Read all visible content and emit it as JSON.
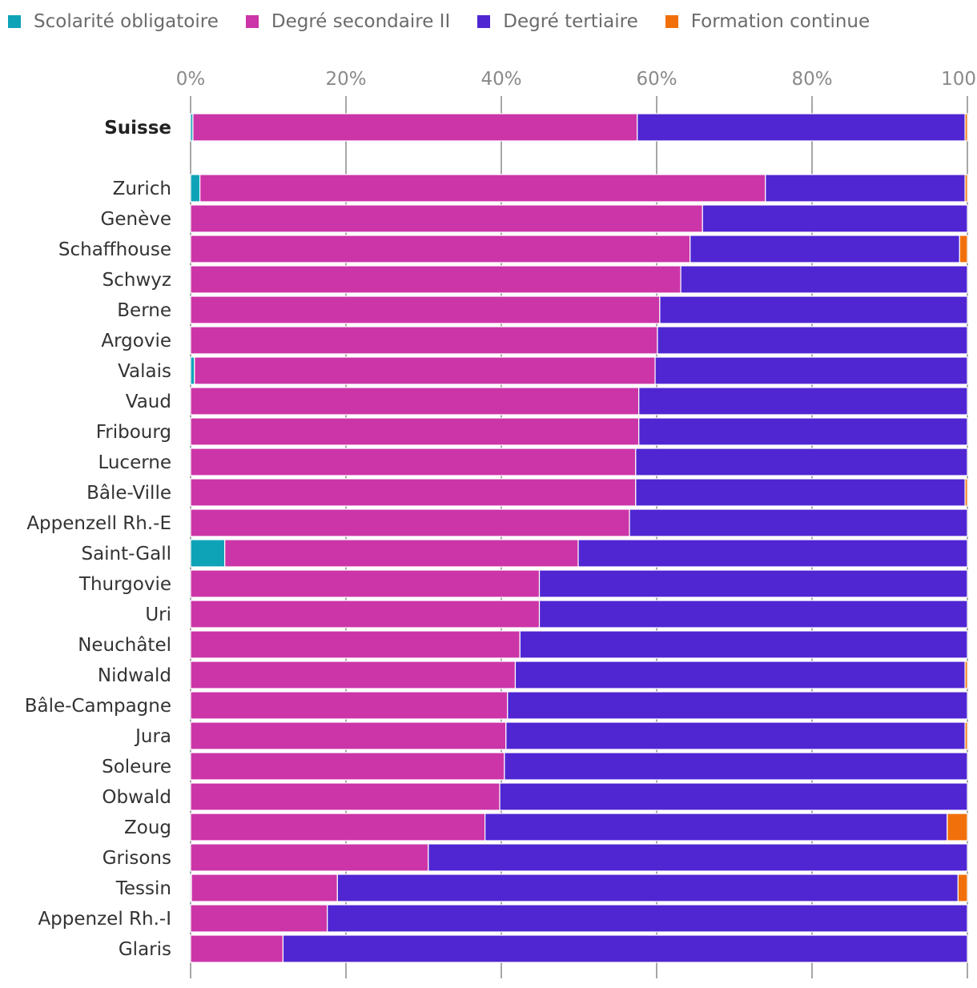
{
  "chart_data": {
    "type": "bar",
    "orientation": "horizontal",
    "stacked": true,
    "title": "",
    "xlabel": "",
    "ylabel": "",
    "xlim": [
      0,
      100
    ],
    "x_ticks": [
      "0%",
      "20%",
      "40%",
      "60%",
      "80%",
      "100%"
    ],
    "x_tick_values": [
      0,
      20,
      40,
      60,
      80,
      100
    ],
    "legend_position": "top-left",
    "grid": "vertical",
    "highlighted_category": "Suisse",
    "categories": [
      "Suisse",
      "Zurich",
      "Genève",
      "Schaffhouse",
      "Schwyz",
      "Berne",
      "Argovie",
      "Valais",
      "Vaud",
      "Fribourg",
      "Lucerne",
      "Bâle-Ville",
      "Appenzell Rh.-E",
      "Saint-Gall",
      "Thurgovie",
      "Uri",
      "Neuchâtel",
      "Nidwald",
      "Bâle-Campagne",
      "Jura",
      "Soleure",
      "Obwald",
      "Zoug",
      "Grisons",
      "Tessin",
      "Appenzel Rh.-I",
      "Glaris"
    ],
    "series": [
      {
        "name": "Scolarité obligatoire",
        "color": "#0fa3b8",
        "values": [
          0.3,
          1.2,
          0,
          0,
          0,
          0,
          0,
          0.5,
          0,
          0,
          0,
          0,
          0,
          4.4,
          0,
          0,
          0,
          0,
          0,
          0,
          0,
          0,
          0,
          0,
          0.1,
          0,
          0
        ]
      },
      {
        "name": "Degré secondaire II",
        "color": "#cc35a8",
        "values": [
          57.2,
          72.8,
          65.9,
          64.3,
          63.1,
          60.4,
          60.1,
          59.3,
          57.7,
          57.7,
          57.3,
          57.3,
          56.5,
          45.5,
          44.9,
          44.9,
          42.4,
          41.8,
          40.8,
          40.6,
          40.4,
          39.8,
          37.9,
          30.6,
          18.8,
          17.6,
          11.9
        ]
      },
      {
        "name": "Degré tertiaire",
        "color": "#5026d2",
        "values": [
          42.2,
          25.7,
          34.1,
          34.7,
          36.9,
          39.6,
          39.9,
          40.2,
          42.3,
          42.3,
          42.7,
          42.4,
          43.5,
          50.1,
          55.1,
          55.1,
          57.6,
          57.9,
          59.2,
          59.1,
          59.6,
          60.2,
          59.5,
          69.4,
          79.9,
          82.4,
          88.1
        ]
      },
      {
        "name": "Formation continue",
        "color": "#f2700b",
        "values": [
          0.3,
          0.3,
          0,
          1.0,
          0,
          0,
          0,
          0,
          0,
          0,
          0,
          0.3,
          0,
          0,
          0,
          0,
          0,
          0.3,
          0,
          0.3,
          0,
          0,
          2.6,
          0,
          1.2,
          0,
          0
        ]
      }
    ]
  }
}
